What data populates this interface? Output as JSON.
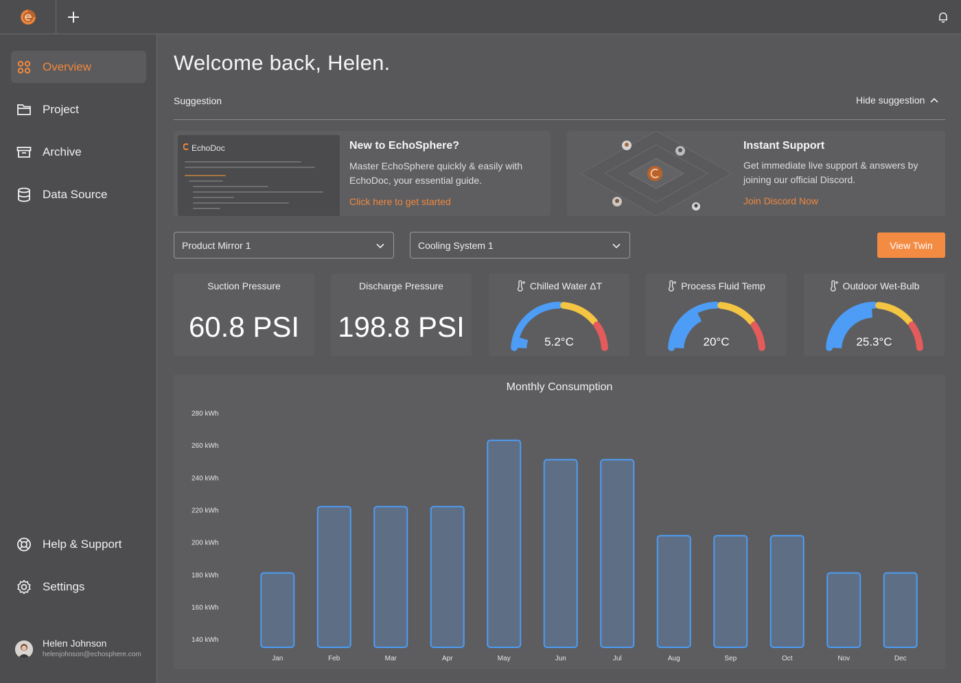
{
  "topbar": {
    "new_tab": "+"
  },
  "sidebar": {
    "items": [
      {
        "label": "Overview",
        "icon": "grid-icon",
        "active": true
      },
      {
        "label": "Project",
        "icon": "folder-icon",
        "active": false
      },
      {
        "label": "Archive",
        "icon": "archive-icon",
        "active": false
      },
      {
        "label": "Data Source",
        "icon": "database-icon",
        "active": false
      }
    ],
    "bottom_items": [
      {
        "label": "Help & Support",
        "icon": "lifebuoy-icon"
      },
      {
        "label": "Settings",
        "icon": "gear-icon"
      }
    ],
    "user": {
      "name": "Helen Johnson",
      "email": "helenjohnson@echosphere.com"
    }
  },
  "main": {
    "welcome": "Welcome back, Helen.",
    "suggestion_label": "Suggestion",
    "hide_suggestion": "Hide suggestion"
  },
  "cards": {
    "echodoc": {
      "thumb_title": "EchoDoc",
      "title": "New to EchoSphere?",
      "text": "Master EchoSphere quickly & easily with EchoDoc, your essential guide.",
      "link": "Click here to get started"
    },
    "support": {
      "title": "Instant Support",
      "text": "Get immediate live support & answers by joining our official Discord.",
      "link": "Join Discord Now"
    }
  },
  "filters": {
    "product": "Product Mirror 1",
    "system": "Cooling System 1",
    "view_button": "View Twin"
  },
  "metrics": {
    "suction": {
      "title": "Suction Pressure",
      "value": "60.8 PSI"
    },
    "discharge": {
      "title": "Discharge Pressure",
      "value": "198.8 PSI"
    },
    "chilled": {
      "title": "Chilled Water ΔT",
      "value": "5.2°C",
      "level": 0.1
    },
    "process": {
      "title": "Process Fluid Temp",
      "value": "20°C",
      "level": 0.35
    },
    "wetbulb": {
      "title": "Outdoor Wet-Bulb",
      "value": "25.3°C",
      "level": 0.48
    }
  },
  "colors": {
    "accent": "#f0883e",
    "gauge_blue": "#4d9cf5",
    "gauge_yellow": "#f4c542",
    "gauge_red": "#e45b5b",
    "bar_fill": "#5e6e84",
    "bar_stroke": "#4d9cf5"
  },
  "chart_data": {
    "type": "bar",
    "title": "Monthly Consumption",
    "categories": [
      "Jan",
      "Feb",
      "Mar",
      "Apr",
      "May",
      "Jun",
      "Jul",
      "Aug",
      "Sep",
      "Oct",
      "Nov",
      "Dec"
    ],
    "values": [
      181,
      222,
      222,
      222,
      263,
      251,
      251,
      204,
      204,
      204,
      181,
      181
    ],
    "yticks": [
      140,
      160,
      180,
      200,
      220,
      240,
      260,
      280
    ],
    "ytick_labels": [
      "140 kWh",
      "160 kWh",
      "180 kWh",
      "200 kWh",
      "220 kWh",
      "240 kWh",
      "260 kWh",
      "280 kWh"
    ],
    "ylim": [
      135,
      280
    ],
    "grid": false
  }
}
